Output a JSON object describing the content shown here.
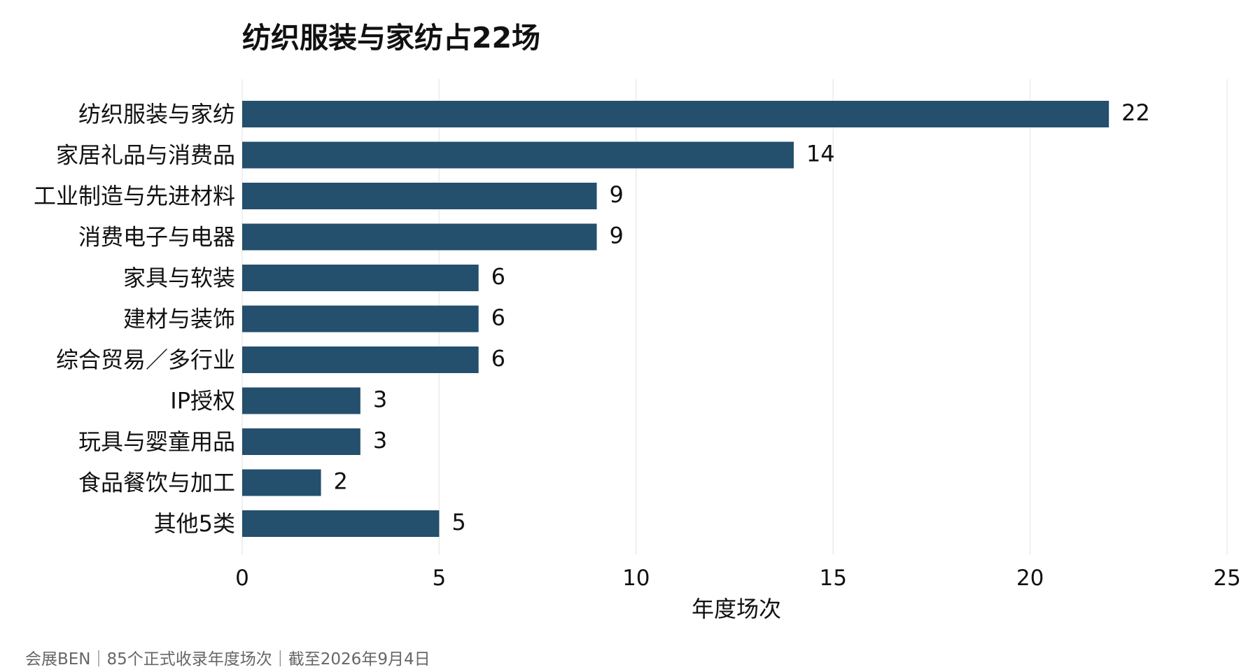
{
  "chart_data": {
    "type": "bar",
    "orientation": "horizontal",
    "title": "纺织服装与家纺占22场",
    "categories": [
      "纺织服装与家纺",
      "家居礼品与消费品",
      "工业制造与先进材料",
      "消费电子与电器",
      "家具与软装",
      "建材与装饰",
      "综合贸易／多行业",
      "IP授权",
      "玩具与婴童用品",
      "食品餐饮与加工",
      "其他5类"
    ],
    "values": [
      22,
      14,
      9,
      9,
      6,
      6,
      6,
      3,
      3,
      2,
      5
    ],
    "xlabel": "年度场次",
    "ylabel": "",
    "xlim": [
      0,
      25
    ],
    "xticks": [
      0,
      5,
      10,
      15,
      20,
      25
    ],
    "grid": "vertical",
    "bar_color": "#244f6d",
    "source": "会展BEN｜85个正式收录年度场次｜截至2026年9月4日"
  }
}
